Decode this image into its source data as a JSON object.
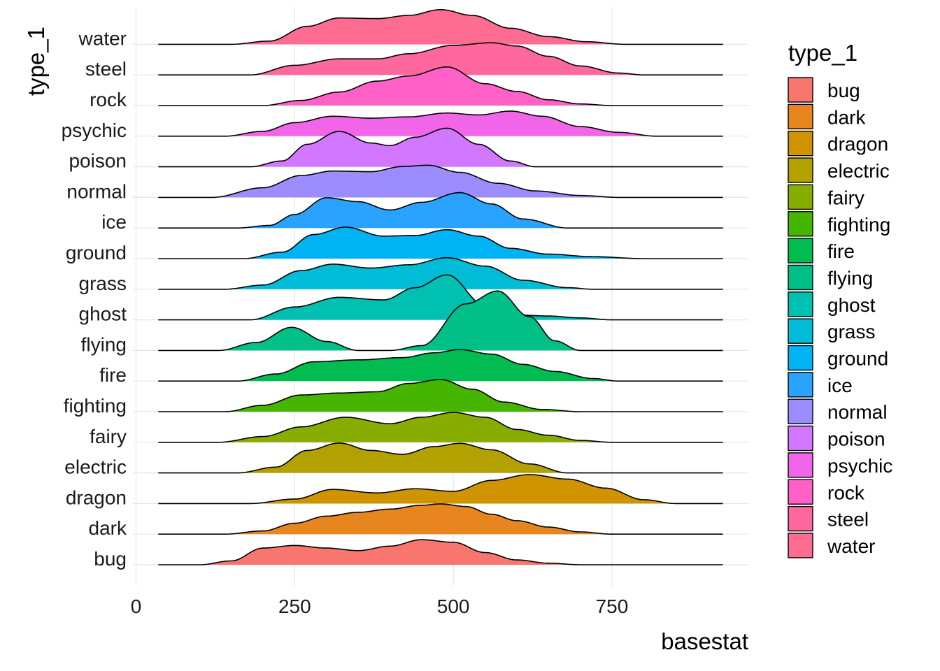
{
  "chart_data": {
    "type": "ridgeline",
    "xlabel": "basestat",
    "ylabel": "type_1",
    "legend_title": "type_1",
    "legend_position": "right",
    "grid": true,
    "xlim": [
      -5,
      965
    ],
    "x_range": [
      35,
      925
    ],
    "x_ticks": [
      0,
      250,
      500,
      750
    ],
    "categories": [
      "bug",
      "dark",
      "dragon",
      "electric",
      "fairy",
      "fighting",
      "fire",
      "flying",
      "ghost",
      "grass",
      "ground",
      "ice",
      "normal",
      "poison",
      "psychic",
      "rock",
      "steel",
      "water"
    ],
    "colors": [
      "#F8766D",
      "#E7851E",
      "#D09400",
      "#B2A100",
      "#89AC00",
      "#45B500",
      "#00BC51",
      "#00C087",
      "#00C0B2",
      "#00BCD6",
      "#00B3F2",
      "#29A3FF",
      "#9C8DFF",
      "#D277FF",
      "#F166E8",
      "#FF61C7",
      "#FF689E",
      "#FF6C91"
    ],
    "ridge_max_height_rows": 1.05,
    "series": [
      {
        "name": "bug",
        "x": [
          100,
          150,
          200,
          250,
          300,
          350,
          400,
          450,
          500,
          550,
          600,
          650,
          700
        ],
        "density": [
          0.0,
          0.12,
          0.52,
          0.6,
          0.52,
          0.44,
          0.58,
          0.78,
          0.7,
          0.38,
          0.15,
          0.05,
          0.0
        ]
      },
      {
        "name": "dark",
        "x": [
          140,
          200,
          250,
          300,
          350,
          400,
          450,
          480,
          520,
          560,
          600,
          650,
          700,
          750
        ],
        "density": [
          0.0,
          0.1,
          0.34,
          0.56,
          0.68,
          0.78,
          0.9,
          0.94,
          0.86,
          0.62,
          0.42,
          0.22,
          0.07,
          0.0
        ]
      },
      {
        "name": "dragon",
        "x": [
          180,
          250,
          310,
          380,
          440,
          500,
          560,
          620,
          680,
          740,
          800,
          850
        ],
        "density": [
          0.0,
          0.14,
          0.44,
          0.33,
          0.46,
          0.38,
          0.72,
          0.9,
          0.76,
          0.48,
          0.12,
          0.0
        ]
      },
      {
        "name": "electric",
        "x": [
          160,
          220,
          270,
          320,
          370,
          420,
          470,
          510,
          560,
          620,
          680
        ],
        "density": [
          0.0,
          0.18,
          0.7,
          0.93,
          0.7,
          0.58,
          0.82,
          0.92,
          0.72,
          0.28,
          0.0
        ]
      },
      {
        "name": "fairy",
        "x": [
          130,
          200,
          260,
          330,
          400,
          450,
          500,
          550,
          600,
          650,
          700,
          750
        ],
        "density": [
          0.0,
          0.18,
          0.48,
          0.78,
          0.58,
          0.78,
          0.93,
          0.78,
          0.4,
          0.22,
          0.06,
          0.0
        ]
      },
      {
        "name": "fighting",
        "x": [
          140,
          200,
          260,
          320,
          380,
          430,
          480,
          530,
          580,
          640,
          700
        ],
        "density": [
          0.0,
          0.2,
          0.52,
          0.58,
          0.62,
          0.88,
          1.0,
          0.7,
          0.3,
          0.07,
          0.0
        ]
      },
      {
        "name": "fire",
        "x": [
          160,
          220,
          280,
          350,
          420,
          470,
          510,
          560,
          610,
          660,
          720,
          760
        ],
        "density": [
          0.0,
          0.22,
          0.6,
          0.66,
          0.73,
          0.88,
          0.98,
          0.84,
          0.52,
          0.3,
          0.08,
          0.0
        ]
      },
      {
        "name": "flying",
        "x": [
          130,
          190,
          245,
          300,
          350,
          400,
          450,
          520,
          570,
          620,
          660,
          700
        ],
        "density": [
          0.0,
          0.25,
          0.72,
          0.28,
          0.0,
          0.0,
          0.15,
          1.45,
          1.85,
          1.05,
          0.3,
          0.0
        ]
      },
      {
        "name": "ghost",
        "x": [
          180,
          250,
          320,
          390,
          440,
          490,
          550,
          600,
          650,
          700,
          750
        ],
        "density": [
          0.0,
          0.4,
          0.7,
          0.62,
          1.0,
          1.4,
          0.45,
          0.15,
          0.12,
          0.06,
          0.0
        ]
      },
      {
        "name": "grass",
        "x": [
          140,
          200,
          260,
          310,
          370,
          430,
          490,
          550,
          610,
          680,
          720
        ],
        "density": [
          0.0,
          0.13,
          0.58,
          0.78,
          0.66,
          0.76,
          0.98,
          0.72,
          0.28,
          0.05,
          0.0
        ]
      },
      {
        "name": "ground",
        "x": [
          170,
          230,
          280,
          330,
          390,
          440,
          490,
          540,
          590,
          650,
          720,
          800
        ],
        "density": [
          0.0,
          0.2,
          0.75,
          0.98,
          0.7,
          0.72,
          0.9,
          0.7,
          0.32,
          0.14,
          0.06,
          0.0
        ]
      },
      {
        "name": "ice",
        "x": [
          160,
          210,
          250,
          300,
          350,
          400,
          450,
          510,
          560,
          610,
          680
        ],
        "density": [
          0.0,
          0.08,
          0.42,
          0.94,
          0.82,
          0.56,
          0.8,
          1.1,
          0.75,
          0.28,
          0.0
        ]
      },
      {
        "name": "normal",
        "x": [
          120,
          200,
          260,
          310,
          370,
          420,
          460,
          510,
          570,
          630,
          700,
          760
        ],
        "density": [
          0.0,
          0.3,
          0.68,
          0.82,
          0.8,
          0.96,
          1.0,
          0.78,
          0.44,
          0.2,
          0.06,
          0.0
        ]
      },
      {
        "name": "poison",
        "x": [
          180,
          230,
          270,
          320,
          370,
          400,
          440,
          490,
          540,
          590,
          630
        ],
        "density": [
          0.0,
          0.18,
          0.7,
          1.1,
          0.74,
          0.66,
          0.92,
          1.2,
          0.7,
          0.18,
          0.0
        ]
      },
      {
        "name": "psychic",
        "x": [
          140,
          200,
          250,
          310,
          370,
          430,
          490,
          540,
          590,
          640,
          700,
          760,
          820
        ],
        "density": [
          0.0,
          0.15,
          0.42,
          0.62,
          0.56,
          0.6,
          0.72,
          0.66,
          0.78,
          0.62,
          0.3,
          0.12,
          0.0
        ]
      },
      {
        "name": "rock",
        "x": [
          200,
          260,
          320,
          380,
          430,
          490,
          550,
          600,
          650,
          700,
          750
        ],
        "density": [
          0.0,
          0.16,
          0.42,
          0.76,
          0.92,
          1.2,
          0.68,
          0.44,
          0.18,
          0.05,
          0.0
        ]
      },
      {
        "name": "steel",
        "x": [
          180,
          250,
          320,
          380,
          430,
          500,
          560,
          600,
          650,
          700,
          760,
          800
        ],
        "density": [
          0.0,
          0.3,
          0.5,
          0.5,
          0.66,
          0.92,
          1.0,
          0.9,
          0.58,
          0.28,
          0.06,
          0.0
        ]
      },
      {
        "name": "water",
        "x": [
          150,
          210,
          270,
          320,
          380,
          430,
          480,
          530,
          590,
          650,
          710,
          770
        ],
        "density": [
          0.0,
          0.1,
          0.56,
          0.82,
          0.8,
          0.9,
          1.08,
          0.9,
          0.5,
          0.24,
          0.08,
          0.0
        ]
      }
    ]
  }
}
